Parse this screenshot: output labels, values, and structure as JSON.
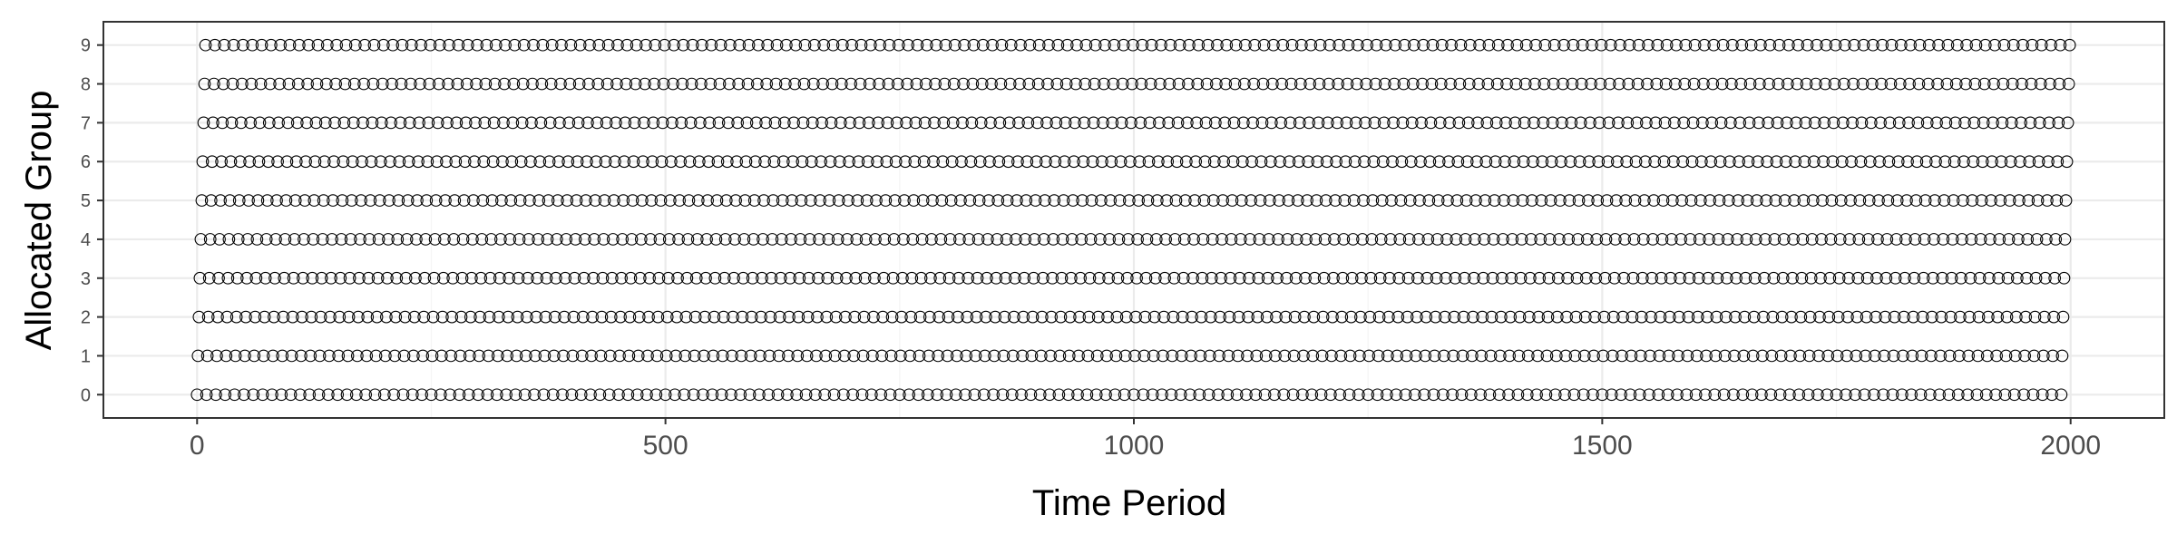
{
  "chart_data": {
    "type": "scatter",
    "title": "",
    "xlabel": "Time Period",
    "ylabel": "Allocated Group",
    "xlim": [
      -100,
      2100
    ],
    "ylim": [
      -0.6,
      9.6
    ],
    "x_ticks": [
      0,
      500,
      1000,
      1500,
      2000
    ],
    "x_tick_labels": [
      "0",
      "500",
      "1000",
      "1500",
      "2000"
    ],
    "y_ticks": [
      0,
      1,
      2,
      3,
      4,
      5,
      6,
      7,
      8,
      9
    ],
    "y_tick_labels": [
      "0",
      "1",
      "2",
      "3",
      "4",
      "5",
      "6",
      "7",
      "8",
      "9"
    ],
    "grid": true,
    "marker": "open-circle",
    "point_color": "#000000",
    "series": [
      {
        "group": 0,
        "x_start": 0,
        "x_end": 1990,
        "x_step": 10
      },
      {
        "group": 1,
        "x_start": 1,
        "x_end": 1991,
        "x_step": 10
      },
      {
        "group": 2,
        "x_start": 2,
        "x_end": 1992,
        "x_step": 10
      },
      {
        "group": 3,
        "x_start": 3,
        "x_end": 1993,
        "x_step": 10
      },
      {
        "group": 4,
        "x_start": 4,
        "x_end": 1994,
        "x_step": 10
      },
      {
        "group": 5,
        "x_start": 5,
        "x_end": 1995,
        "x_step": 10
      },
      {
        "group": 6,
        "x_start": 6,
        "x_end": 1996,
        "x_step": 10
      },
      {
        "group": 7,
        "x_start": 7,
        "x_end": 1997,
        "x_step": 10
      },
      {
        "group": 8,
        "x_start": 8,
        "x_end": 1998,
        "x_step": 10
      },
      {
        "group": 9,
        "x_start": 9,
        "x_end": 1999,
        "x_step": 10
      }
    ],
    "colors": {
      "panel_border": "#333333",
      "grid_major": "#ebebeb",
      "grid_minor": "#f5f5f5",
      "tick_text": "#4d4d4d",
      "background": "#ffffff"
    }
  }
}
